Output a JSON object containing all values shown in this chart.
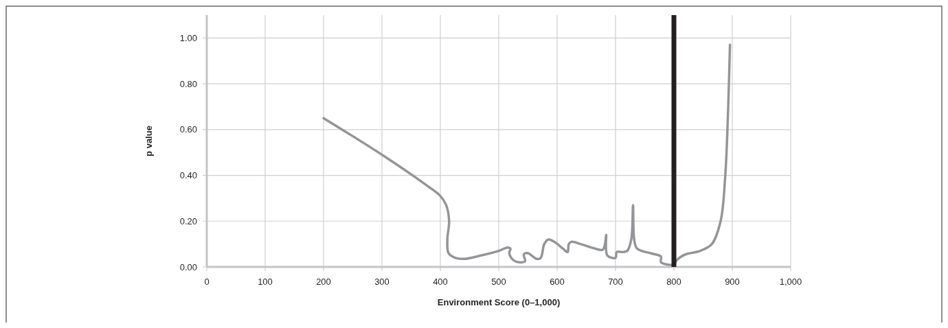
{
  "chart_data": {
    "type": "line",
    "xlabel": "Environment Score (0–1,000)",
    "ylabel": "p value",
    "xlim": [
      0,
      1000
    ],
    "ylim": [
      0,
      1.1
    ],
    "xticks": [
      0,
      100,
      200,
      300,
      400,
      500,
      600,
      700,
      800,
      900,
      {
        "value": 1000,
        "label": "1,000"
      }
    ],
    "yticks": [
      {
        "value": 0,
        "label": "0.00"
      },
      {
        "value": 0.2,
        "label": "0.20"
      },
      {
        "value": 0.4,
        "label": "0.40"
      },
      {
        "value": 0.6,
        "label": "0.60"
      },
      {
        "value": 0.8,
        "label": "0.80"
      },
      {
        "value": 1,
        "label": "1.00"
      }
    ],
    "grid": true,
    "marker": "none",
    "line_style": "solid",
    "ref_lines": [
      {
        "axis": "x",
        "value": 800,
        "color": "#231f20"
      }
    ],
    "series": [
      {
        "color": "#939598",
        "x": [
          200,
          300,
          380,
          400,
          410,
          415,
          412,
          414,
          425,
          440,
          470,
          500,
          515,
          520,
          518,
          525,
          535,
          545,
          543,
          550,
          565,
          572,
          578,
          585,
          595,
          610,
          618,
          620,
          625,
          640,
          665,
          678,
          682,
          684,
          686,
          700,
          702,
          712,
          720,
          727,
          730,
          732,
          737,
          760,
          775,
          778,
          778,
          790,
          800,
          805,
          820,
          845,
          865,
          880,
          888,
          893,
          896
        ],
        "values": [
          0.65,
          0.49,
          0.35,
          0.31,
          0.27,
          0.2,
          0.12,
          0.06,
          0.04,
          0.035,
          0.05,
          0.07,
          0.085,
          0.08,
          0.06,
          0.03,
          0.02,
          0.025,
          0.055,
          0.06,
          0.035,
          0.04,
          0.1,
          0.12,
          0.11,
          0.08,
          0.065,
          0.1,
          0.11,
          0.1,
          0.08,
          0.075,
          0.1,
          0.14,
          0.05,
          0.04,
          0.065,
          0.065,
          0.07,
          0.12,
          0.27,
          0.12,
          0.08,
          0.06,
          0.05,
          0.045,
          0.02,
          0.01,
          0.01,
          0.03,
          0.055,
          0.07,
          0.1,
          0.2,
          0.4,
          0.7,
          0.97
        ]
      }
    ]
  }
}
